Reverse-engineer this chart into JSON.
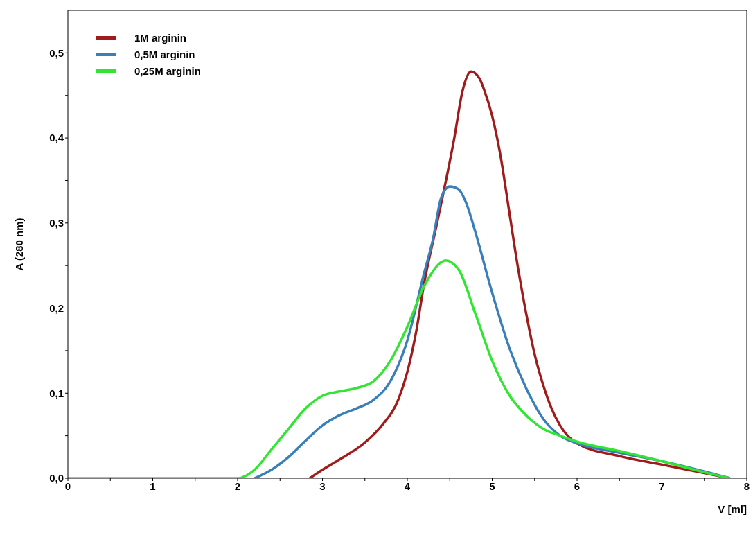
{
  "chart_data": {
    "type": "line",
    "xlabel": "V [ml]",
    "ylabel": "A (280 nm)",
    "xlim": [
      0,
      8
    ],
    "ylim": [
      0,
      0.55
    ],
    "xticks": [
      0,
      {
        "value": 0.5,
        "label": null
      },
      1,
      {
        "value": 1.5,
        "label": null
      },
      2,
      {
        "value": 2.5,
        "label": null
      },
      3,
      {
        "value": 3.5,
        "label": null
      },
      4,
      {
        "value": 4.5,
        "label": null
      },
      5,
      {
        "value": 5.5,
        "label": null
      },
      6,
      {
        "value": 6.5,
        "label": null
      },
      7,
      {
        "value": 7.5,
        "label": null
      },
      8
    ],
    "yticks": [
      {
        "value": 0,
        "label": "0,0"
      },
      {
        "value": 0.05,
        "label": null
      },
      {
        "value": 0.1,
        "label": "0,1"
      },
      {
        "value": 0.15,
        "label": null
      },
      {
        "value": 0.2,
        "label": "0,2"
      },
      {
        "value": 0.25,
        "label": null
      },
      {
        "value": 0.3,
        "label": "0,3"
      },
      {
        "value": 0.35,
        "label": null
      },
      {
        "value": 0.4,
        "label": "0,4"
      },
      {
        "value": 0.45,
        "label": null
      },
      {
        "value": 0.5,
        "label": "0,5"
      }
    ],
    "grid": false,
    "legend": "top left",
    "marker": "none",
    "line_style": "solid",
    "series": [
      {
        "name": "1M arginin",
        "color": "#a01c1c",
        "x": [
          2.85,
          3.0,
          3.2,
          3.5,
          3.7,
          3.9,
          4.0,
          4.1,
          4.2,
          4.35,
          4.55,
          4.65,
          4.75,
          4.85,
          4.9,
          5.0,
          5.1,
          5.2,
          5.3,
          5.4,
          5.5,
          5.6,
          5.7,
          5.8,
          6.0,
          6.5,
          7.0,
          7.5,
          7.8
        ],
        "values": [
          0,
          0.01,
          0.022,
          0.042,
          0.062,
          0.094,
          0.125,
          0.17,
          0.23,
          0.3,
          0.398,
          0.455,
          0.478,
          0.47,
          0.458,
          0.426,
          0.378,
          0.314,
          0.25,
          0.194,
          0.146,
          0.11,
          0.082,
          0.062,
          0.041,
          0.026,
          0.016,
          0.006,
          0
        ]
      },
      {
        "name": "0,5M arginin",
        "color": "#3a7fb8",
        "x": [
          2.2,
          2.4,
          2.6,
          2.8,
          3.0,
          3.2,
          3.4,
          3.6,
          3.8,
          4.0,
          4.2,
          4.3,
          4.4,
          4.5,
          4.6,
          4.7,
          4.8,
          5.0,
          5.2,
          5.4,
          5.6,
          5.8,
          6.0,
          6.5,
          7.0,
          7.5,
          7.8
        ],
        "values": [
          0,
          0.01,
          0.025,
          0.044,
          0.062,
          0.074,
          0.082,
          0.092,
          0.114,
          0.162,
          0.242,
          0.28,
          0.33,
          0.343,
          0.34,
          0.322,
          0.29,
          0.218,
          0.154,
          0.106,
          0.07,
          0.05,
          0.041,
          0.03,
          0.02,
          0.008,
          0
        ]
      },
      {
        "name": "0,25M arginin",
        "color": "#33e533",
        "x": [
          0,
          1,
          2.0,
          2.2,
          2.4,
          2.6,
          2.8,
          3.0,
          3.2,
          3.4,
          3.6,
          3.8,
          4.0,
          4.2,
          4.4,
          4.45,
          4.6,
          4.8,
          5.0,
          5.2,
          5.4,
          5.6,
          5.8,
          6.0,
          6.5,
          7.0,
          7.5,
          7.8
        ],
        "values": [
          0,
          0,
          0,
          0.01,
          0.034,
          0.058,
          0.082,
          0.097,
          0.102,
          0.106,
          0.114,
          0.138,
          0.178,
          0.226,
          0.254,
          0.256,
          0.246,
          0.194,
          0.138,
          0.098,
          0.074,
          0.058,
          0.05,
          0.043,
          0.032,
          0.02,
          0.007,
          0
        ]
      }
    ]
  }
}
